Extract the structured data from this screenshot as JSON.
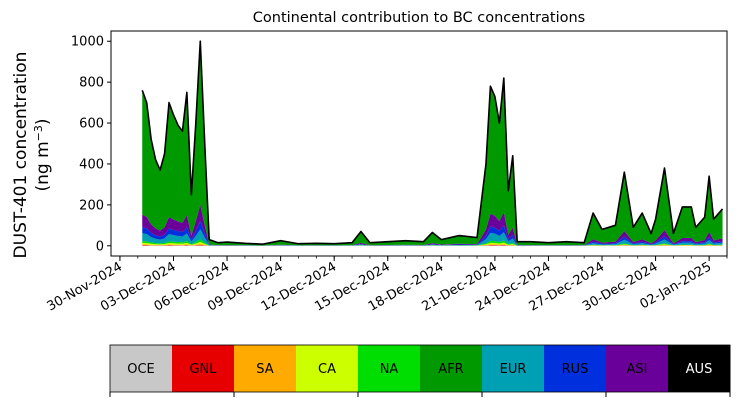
{
  "chart_data": {
    "type": "area",
    "title": "Continental contribution to BC concentrations",
    "ylabel_line1": "DUST-401 concentration",
    "ylabel_line2": "(ng m",
    "ylabel_sup": "−3",
    "ylabel_close": ")",
    "ylim": [
      -50,
      1050
    ],
    "yticks": [
      0,
      200,
      400,
      600,
      800,
      1000
    ],
    "xlim": [
      "2024-11-29T12:00",
      "2025-01-03T00:00"
    ],
    "xticks": [
      "30-Nov-2024",
      "03-Dec-2024",
      "06-Dec-2024",
      "09-Dec-2024",
      "12-Dec-2024",
      "15-Dec-2024",
      "18-Dec-2024",
      "21-Dec-2024",
      "24-Dec-2024",
      "27-Dec-2024",
      "30-Dec-2024",
      "02-Jan-2025"
    ],
    "xtick_dates": [
      "2024-11-30",
      "2024-12-03",
      "2024-12-06",
      "2024-12-09",
      "2024-12-12",
      "2024-12-15",
      "2024-12-18",
      "2024-12-21",
      "2024-12-24",
      "2024-12-27",
      "2024-12-30",
      "2025-01-02"
    ],
    "grid": false,
    "legend_placement": "below",
    "series_colors": {
      "OCE": "#c8c8c8",
      "GNL": "#e60000",
      "SA": "#ffaa00",
      "CA": "#ccff00",
      "NA": "#00dd00",
      "AFR": "#009900",
      "EUR": "#00a0b4",
      "RUS": "#0030dd",
      "ASI": "#6a0099",
      "AUS": "#000000"
    },
    "legend": [
      {
        "label": "OCE",
        "color": "#c8c8c8",
        "text_color": "#000000"
      },
      {
        "label": "GNL",
        "color": "#e60000",
        "text_color": "#000000"
      },
      {
        "label": "SA",
        "color": "#ffaa00",
        "text_color": "#000000"
      },
      {
        "label": "CA",
        "color": "#ccff00",
        "text_color": "#000000"
      },
      {
        "label": "NA",
        "color": "#00dd00",
        "text_color": "#000000"
      },
      {
        "label": "AFR",
        "color": "#009900",
        "text_color": "#000000"
      },
      {
        "label": "EUR",
        "color": "#00a0b4",
        "text_color": "#000000"
      },
      {
        "label": "RUS",
        "color": "#0030dd",
        "text_color": "#000000"
      },
      {
        "label": "ASI",
        "color": "#6a0099",
        "text_color": "#000000"
      },
      {
        "label": "AUS",
        "color": "#000000",
        "text_color": "#ffffff"
      }
    ],
    "total": [
      [
        "2024-12-01T06:00",
        760
      ],
      [
        "2024-12-01T12:00",
        700
      ],
      [
        "2024-12-01T18:00",
        520
      ],
      [
        "2024-12-02T00:00",
        420
      ],
      [
        "2024-12-02T06:00",
        370
      ],
      [
        "2024-12-02T12:00",
        450
      ],
      [
        "2024-12-02T18:00",
        700
      ],
      [
        "2024-12-03T00:00",
        640
      ],
      [
        "2024-12-03T06:00",
        590
      ],
      [
        "2024-12-03T12:00",
        560
      ],
      [
        "2024-12-03T18:00",
        750
      ],
      [
        "2024-12-04T00:00",
        250
      ],
      [
        "2024-12-04T06:00",
        600
      ],
      [
        "2024-12-04T12:00",
        1000
      ],
      [
        "2024-12-04T18:00",
        500
      ],
      [
        "2024-12-05T00:00",
        30
      ],
      [
        "2024-12-05T12:00",
        15
      ],
      [
        "2024-12-06T00:00",
        18
      ],
      [
        "2024-12-07T00:00",
        12
      ],
      [
        "2024-12-08T00:00",
        8
      ],
      [
        "2024-12-09T00:00",
        25
      ],
      [
        "2024-12-10T00:00",
        10
      ],
      [
        "2024-12-11T00:00",
        12
      ],
      [
        "2024-12-12T00:00",
        10
      ],
      [
        "2024-12-13T00:00",
        15
      ],
      [
        "2024-12-13T12:00",
        70
      ],
      [
        "2024-12-14T00:00",
        15
      ],
      [
        "2024-12-15T00:00",
        20
      ],
      [
        "2024-12-16T00:00",
        25
      ],
      [
        "2024-12-17T00:00",
        20
      ],
      [
        "2024-12-17T12:00",
        65
      ],
      [
        "2024-12-18T00:00",
        30
      ],
      [
        "2024-12-19T00:00",
        50
      ],
      [
        "2024-12-20T00:00",
        40
      ],
      [
        "2024-12-20T12:00",
        400
      ],
      [
        "2024-12-20T18:00",
        780
      ],
      [
        "2024-12-21T00:00",
        730
      ],
      [
        "2024-12-21T06:00",
        600
      ],
      [
        "2024-12-21T12:00",
        820
      ],
      [
        "2024-12-21T18:00",
        270
      ],
      [
        "2024-12-22T00:00",
        440
      ],
      [
        "2024-12-22T06:00",
        20
      ],
      [
        "2024-12-23T00:00",
        20
      ],
      [
        "2024-12-24T00:00",
        15
      ],
      [
        "2024-12-25T00:00",
        20
      ],
      [
        "2024-12-26T00:00",
        15
      ],
      [
        "2024-12-26T12:00",
        160
      ],
      [
        "2024-12-27T00:00",
        80
      ],
      [
        "2024-12-27T18:00",
        100
      ],
      [
        "2024-12-28T06:00",
        360
      ],
      [
        "2024-12-28T18:00",
        90
      ],
      [
        "2024-12-29T06:00",
        160
      ],
      [
        "2024-12-29T18:00",
        60
      ],
      [
        "2024-12-30T00:00",
        130
      ],
      [
        "2024-12-30T12:00",
        380
      ],
      [
        "2024-12-31T00:00",
        60
      ],
      [
        "2024-12-31T12:00",
        190
      ],
      [
        "2025-01-01T00:00",
        190
      ],
      [
        "2025-01-01T06:00",
        90
      ],
      [
        "2025-01-01T18:00",
        140
      ],
      [
        "2025-01-02T00:00",
        340
      ],
      [
        "2025-01-02T06:00",
        130
      ],
      [
        "2025-01-02T18:00",
        180
      ]
    ]
  }
}
